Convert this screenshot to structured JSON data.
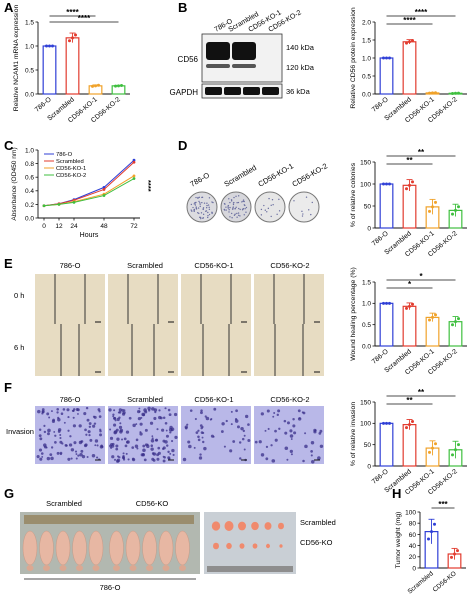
{
  "colors": {
    "c786": "#2f3fd6",
    "scr": "#e23b2e",
    "ko1": "#f0a22a",
    "ko2": "#3fbf3f",
    "blot_bg": "#f2f2f2",
    "band": "#111111",
    "well": "#d9d9d9",
    "scratch_bg": "#e7dcc2",
    "stain_bg": "#b9b8e8",
    "stain_dot": "#3a2f8a",
    "mouse": "#e7b7a3",
    "tumor": "#f08a6d"
  },
  "groups4": [
    "786-O",
    "Scrambled",
    "CD56-KO-1",
    "CD56-KO-2"
  ],
  "groups2": [
    "Scrambled",
    "CD56-KO"
  ],
  "panels": [
    {
      "letter": "A"
    },
    {
      "letter": "B"
    },
    {
      "letter": "C"
    },
    {
      "letter": "D"
    },
    {
      "letter": "E"
    },
    {
      "letter": "F"
    },
    {
      "letter": "G"
    },
    {
      "letter": "H"
    }
  ],
  "stars4": "****",
  "stars2": "**",
  "stars1": "*",
  "stars3": "***",
  "blot": {
    "protein1": "CD56",
    "protein2": "GAPDH",
    "mw1": "140 kDa",
    "mw2": "120 kDa",
    "mw3": "36 kDa",
    "lanes": [
      "786-O",
      "Scrambled",
      "CD56-KO-1",
      "CD56-KO-2"
    ]
  },
  "wound_rows": [
    "0 h",
    "6 h"
  ],
  "invasion_row": "Invasion",
  "xenograft": {
    "cohort": "786-O",
    "label_top": "Scrambled",
    "label_bottom": "CD56-KO"
  },
  "chart_data": [
    {
      "panel": "A",
      "type": "bar",
      "categories": [
        "786-O",
        "Scrambled",
        "CD56-KO-1",
        "CD56-KO-2"
      ],
      "values": [
        1.0,
        1.17,
        0.17,
        0.17
      ],
      "errors": [
        0.0,
        0.1,
        0.02,
        0.01
      ],
      "ylabel": "Relative NCAM1 mRNA expression",
      "ylim": [
        0,
        1.5
      ],
      "yticks": [
        "0.0",
        "0.5",
        "1.0",
        "1.5"
      ]
    },
    {
      "panel": "B",
      "type": "bar",
      "categories": [
        "786-O",
        "Scrambled",
        "CD56-KO-1",
        "CD56-KO-2"
      ],
      "values": [
        1.0,
        1.45,
        0.03,
        0.02
      ],
      "errors": [
        0.0,
        0.06,
        0.01,
        0.01
      ],
      "ylabel": "Relative CD56 protein expression",
      "ylim": [
        0,
        2.0
      ],
      "yticks": [
        "0.0",
        "0.5",
        "1.0",
        "1.5",
        "2.0"
      ]
    },
    {
      "panel": "C",
      "type": "line",
      "x": [
        0,
        12,
        24,
        48,
        72
      ],
      "series": [
        {
          "name": "786-O",
          "values": [
            0.18,
            0.21,
            0.27,
            0.45,
            0.85
          ]
        },
        {
          "name": "Scrambled",
          "values": [
            0.18,
            0.21,
            0.26,
            0.42,
            0.82
          ]
        },
        {
          "name": "CD56-KO-1",
          "values": [
            0.18,
            0.2,
            0.24,
            0.35,
            0.62
          ]
        },
        {
          "name": "CD56-KO-2",
          "values": [
            0.18,
            0.2,
            0.23,
            0.33,
            0.58
          ]
        }
      ],
      "xlabel": "Hours",
      "ylabel": "Absorbance (OD450 nm)",
      "ylim": [
        0,
        1.0
      ],
      "xticks": [
        "0",
        "12",
        "24",
        "48",
        "72"
      ],
      "yticks": [
        "0.0",
        "0.2",
        "0.4",
        "0.6",
        "0.8",
        "1.0"
      ]
    },
    {
      "panel": "D",
      "type": "bar",
      "categories": [
        "786-O",
        "Scrambled",
        "CD56-KO-1",
        "CD56-KO-2"
      ],
      "values": [
        100,
        97,
        48,
        40
      ],
      "errors": [
        0,
        13,
        17,
        14
      ],
      "ylabel": "% of relative colonies",
      "ylim": [
        0,
        150
      ],
      "yticks": [
        "0",
        "50",
        "100",
        "150"
      ]
    },
    {
      "panel": "E",
      "type": "bar",
      "categories": [
        "786-O",
        "Scrambled",
        "CD56-KO-1",
        "CD56-KO-2"
      ],
      "values": [
        1.0,
        0.93,
        0.67,
        0.57
      ],
      "errors": [
        0,
        0.08,
        0.1,
        0.12
      ],
      "ylabel": "Wound healing percentage (%)",
      "ylim": [
        0,
        1.5
      ],
      "yticks": [
        "0.0",
        "0.5",
        "1.0",
        "1.5"
      ]
    },
    {
      "panel": "F",
      "type": "bar",
      "categories": [
        "786-O",
        "Scrambled",
        "CD56-KO-1",
        "CD56-KO-2"
      ],
      "values": [
        100,
        97,
        42,
        38
      ],
      "errors": [
        0,
        12,
        17,
        20
      ],
      "ylabel": "% of relative invasion",
      "ylim": [
        0,
        150
      ],
      "yticks": [
        "0",
        "50",
        "100",
        "150"
      ]
    },
    {
      "panel": "H",
      "type": "bar",
      "categories": [
        "Scrambled",
        "CD56-KO"
      ],
      "values": [
        65,
        25
      ],
      "errors": [
        22,
        10
      ],
      "ylabel": "Tumor weight (mg)",
      "ylim": [
        0,
        100
      ],
      "yticks": [
        "0",
        "20",
        "40",
        "60",
        "80",
        "100"
      ]
    }
  ]
}
